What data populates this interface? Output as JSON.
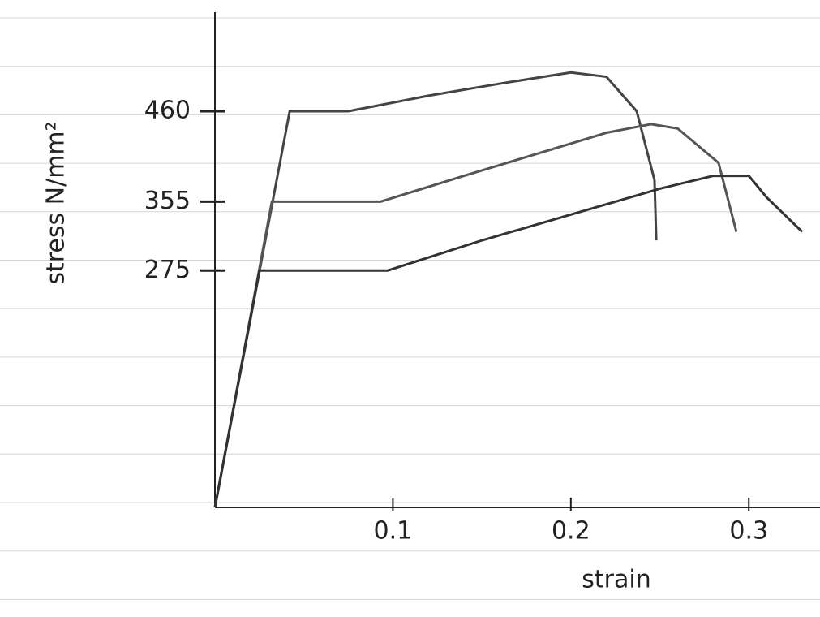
{
  "chart_data": {
    "type": "line",
    "x_label": "strain",
    "y_label": "stress N/mm²",
    "xlim": [
      0,
      0.34
    ],
    "ylim": [
      0,
      575
    ],
    "xticks": [
      0.1,
      0.2,
      0.3
    ],
    "yticks": [
      275,
      355,
      460
    ],
    "series": [
      {
        "name": "460",
        "color": "#444",
        "x": [
          0,
          0.042,
          0.075,
          0.12,
          0.16,
          0.2,
          0.22,
          0.237,
          0.247,
          0.248
        ],
        "values": [
          0,
          460,
          460,
          478,
          492,
          505,
          500,
          460,
          380,
          310
        ]
      },
      {
        "name": "355",
        "color": "#555",
        "x": [
          0,
          0.032,
          0.093,
          0.14,
          0.18,
          0.22,
          0.245,
          0.26,
          0.283,
          0.293
        ],
        "values": [
          0,
          355,
          355,
          385,
          410,
          435,
          445,
          440,
          400,
          320
        ]
      },
      {
        "name": "275",
        "color": "#333",
        "x": [
          0,
          0.025,
          0.097,
          0.15,
          0.2,
          0.25,
          0.28,
          0.3,
          0.31,
          0.33
        ],
        "values": [
          0,
          275,
          275,
          310,
          340,
          370,
          385,
          385,
          360,
          320
        ]
      }
    ]
  }
}
